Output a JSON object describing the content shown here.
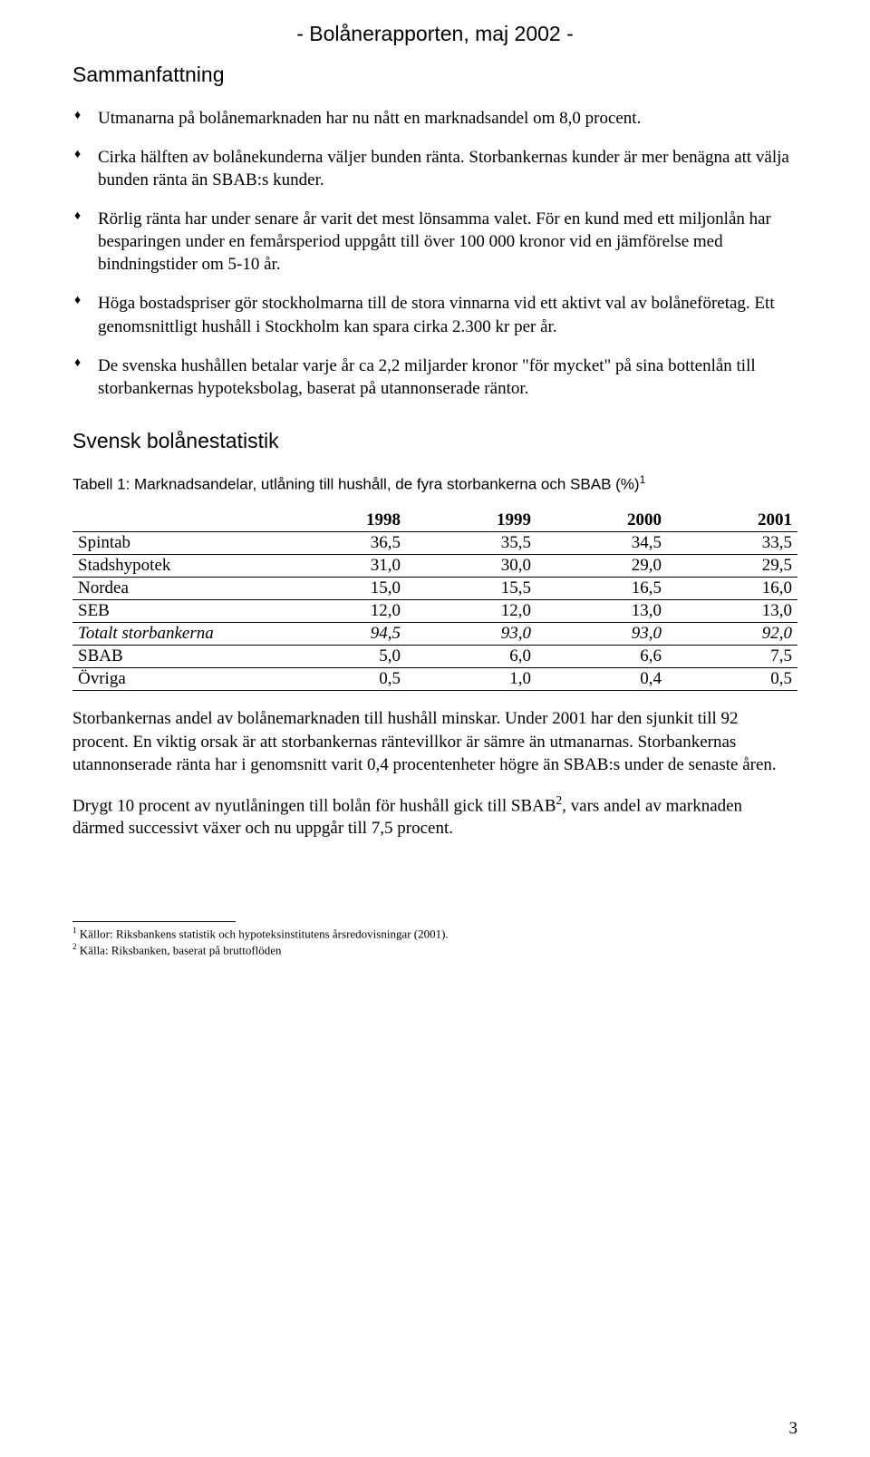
{
  "header": {
    "report_title": "- Bolånerapporten, maj 2002 -"
  },
  "summary": {
    "heading": "Sammanfattning",
    "bullets": [
      "Utmanarna på bolånemarknaden har nu nått en marknadsandel om 8,0 procent.",
      "Cirka hälften av bolånekunderna väljer bunden ränta. Storbankernas kunder är mer benägna att välja bunden ränta än SBAB:s kunder.",
      "Rörlig ränta har under senare år varit det mest lönsamma valet. För en kund med ett miljonlån har besparingen under en femårsperiod uppgått till över 100 000 kronor vid en jämförelse med bindningstider om 5-10 år.",
      "Höga bostadspriser gör stockholmarna till de stora vinnarna vid ett aktivt val av bolåneföretag. Ett genomsnittligt hushåll i Stockholm kan spara cirka 2.300 kr per år.",
      "De svenska hushållen betalar varje år ca 2,2 miljarder kronor \"för mycket\" på sina bottenlån till storbankernas hypoteksbolag, baserat på utannonserade räntor."
    ]
  },
  "stats": {
    "heading": "Svensk bolånestatistik",
    "table_caption": "Tabell 1: Marknadsandelar, utlåning till hushåll, de fyra storbankerna och SBAB (%)",
    "table_footnote_marker": "1",
    "table": {
      "columns": [
        "",
        "1998",
        "1999",
        "2000",
        "2001"
      ],
      "col_widths_pct": [
        28,
        18,
        18,
        18,
        18
      ],
      "rows": [
        {
          "label": "Spintab",
          "values": [
            "36,5",
            "35,5",
            "34,5",
            "33,5"
          ],
          "italic": false
        },
        {
          "label": "Stadshypotek",
          "values": [
            "31,0",
            "30,0",
            "29,0",
            "29,5"
          ],
          "italic": false
        },
        {
          "label": "Nordea",
          "values": [
            "15,0",
            "15,5",
            "16,5",
            "16,0"
          ],
          "italic": false
        },
        {
          "label": "SEB",
          "values": [
            "12,0",
            "12,0",
            "13,0",
            "13,0"
          ],
          "italic": false
        },
        {
          "label": "Totalt storbankerna",
          "values": [
            "94,5",
            "93,0",
            "93,0",
            "92,0"
          ],
          "italic": true
        },
        {
          "label": "SBAB",
          "values": [
            "5,0",
            "6,0",
            "6,6",
            "7,5"
          ],
          "italic": false
        },
        {
          "label": "Övriga",
          "values": [
            "0,5",
            "1,0",
            "0,4",
            "0,5"
          ],
          "italic": false
        }
      ]
    },
    "para1": "Storbankernas andel av bolånemarknaden till hushåll minskar. Under 2001 har den sjunkit till 92 procent. En viktig orsak är att storbankernas räntevillkor är sämre än utmanarnas. Storbankernas utannonserade ränta har i genomsnitt varit 0,4 procentenheter högre än SBAB:s under de senaste åren.",
    "para2_a": "Drygt 10 procent av nyutlåningen till bolån för hushåll gick till SBAB",
    "para2_sup": "2",
    "para2_b": ", vars andel av marknaden därmed successivt växer och nu uppgår till 7,5 procent."
  },
  "footnotes": {
    "fn1_marker": "1",
    "fn1_text": " Källor: Riksbankens statistik och hypoteksinstitutens årsredovisningar (2001).",
    "fn2_marker": "2",
    "fn2_text": " Källa: Riksbanken, baserat på bruttoflöden"
  },
  "page_number": "3"
}
